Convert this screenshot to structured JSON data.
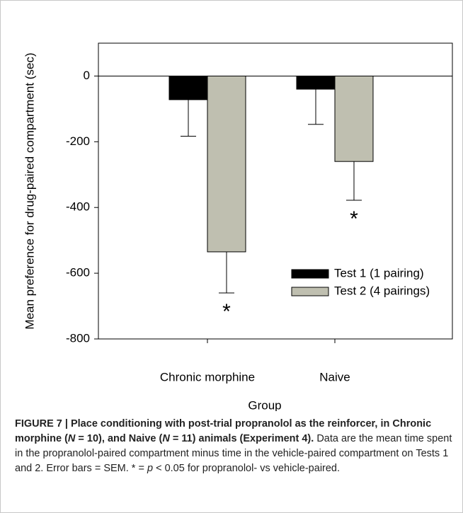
{
  "chart_data": {
    "type": "bar",
    "x_label": "Group",
    "y_label": "Mean preference for drug-paired compartment (sec)",
    "categories": [
      "Chronic morphine",
      "Naive"
    ],
    "series": [
      {
        "name": "Test 1 (1 pairing)",
        "color": "#000000",
        "values": [
          -72,
          -40
        ],
        "errors": [
          111,
          107
        ]
      },
      {
        "name": "Test 2 (4 pairings)",
        "color": "#bfbfb0",
        "values": [
          -535,
          -260
        ],
        "errors": [
          125,
          118
        ],
        "significance": [
          "*",
          "*"
        ]
      }
    ],
    "ylim": [
      -800,
      100
    ],
    "yticks": [
      0,
      -200,
      -400,
      -600,
      -800
    ],
    "zero_line": true,
    "legend": "lower right"
  },
  "caption": [
    {
      "text": "FIGURE 7 | Place conditioning with post-trial propranolol as the reinforcer, in Chronic morphine (",
      "bold": true,
      "italic": false
    },
    {
      "text": "N",
      "bold": true,
      "italic": true
    },
    {
      "text": " = 10), and Naive (",
      "bold": true,
      "italic": false
    },
    {
      "text": "N",
      "bold": true,
      "italic": true
    },
    {
      "text": " = 11) animals (Experiment 4).",
      "bold": true,
      "italic": false
    },
    {
      "text": " Data are the mean time spent in the propranolol-paired compartment minus time in the vehicle-paired compartment on Tests 1 and 2. Error bars = SEM. * = ",
      "bold": false,
      "italic": false
    },
    {
      "text": "p",
      "bold": false,
      "italic": true
    },
    {
      "text": " < 0.05 for propranolol- vs vehicle-paired.",
      "bold": false,
      "italic": false
    }
  ]
}
